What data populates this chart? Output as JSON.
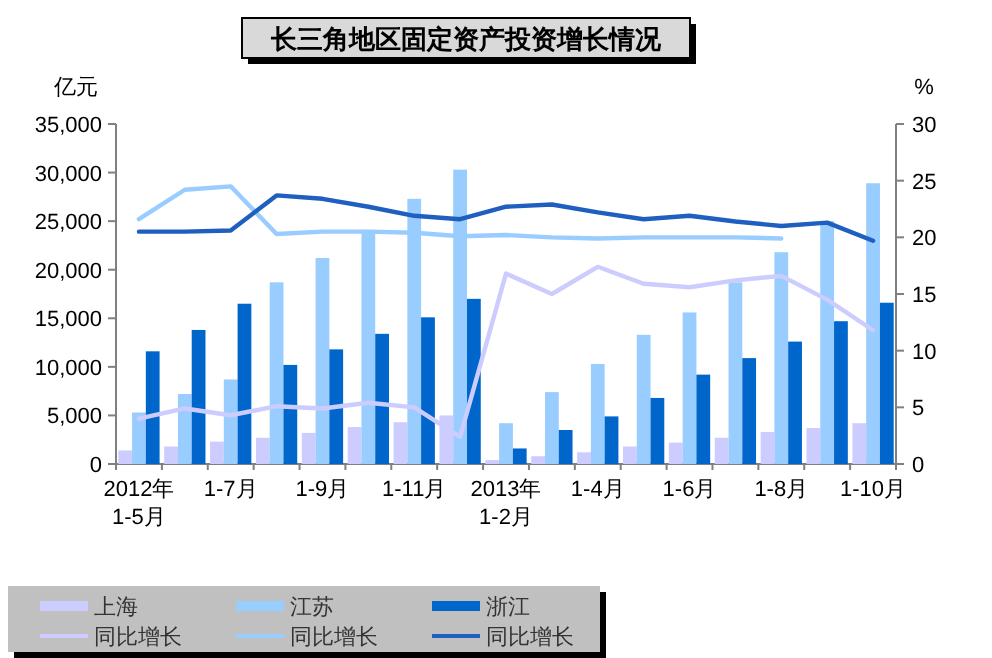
{
  "chart_data": {
    "type": "bar",
    "title": "长三角地区固定资产投资增长情况",
    "ylabel": "亿元",
    "y2label": "%",
    "categories": [
      "2012年\n1-5月",
      null,
      "1-7月",
      null,
      "1-9月",
      null,
      "1-11月",
      null,
      "2013年\n1-2月",
      null,
      "1-4月",
      null,
      "1-6月",
      null,
      "1-8月",
      null,
      "1-10月"
    ],
    "series": [
      {
        "name": "上海",
        "color": "#ccccff",
        "values": [
          1400,
          1800,
          2300,
          2700,
          3200,
          3800,
          4300,
          5000,
          400,
          800,
          1200,
          1800,
          2200,
          2700,
          3300,
          3700,
          4200
        ]
      },
      {
        "name": "江苏",
        "color": "#99ccff",
        "values": [
          5300,
          7200,
          8700,
          18700,
          21200,
          24100,
          27300,
          30300,
          4200,
          7400,
          10300,
          13300,
          15600,
          18700,
          21800,
          25000,
          28900
        ]
      },
      {
        "name": "浙江",
        "color": "#0066cc",
        "values": [
          11600,
          13800,
          16500,
          10200,
          11800,
          13400,
          15100,
          17000,
          1600,
          3500,
          4900,
          6800,
          9200,
          10900,
          12600,
          14700,
          16600
        ]
      },
      {
        "name": "同比增长",
        "type": "line",
        "axis": "y2",
        "color": "#ccccff",
        "values": [
          4.0,
          4.9,
          4.3,
          5.1,
          4.9,
          5.4,
          5.0,
          2.4,
          16.8,
          15.0,
          17.4,
          15.9,
          15.6,
          16.2,
          16.6,
          14.5,
          11.8
        ]
      },
      {
        "name": "同比增长",
        "type": "line",
        "axis": "y2",
        "color": "#99ccff",
        "values": [
          21.6,
          24.2,
          24.5,
          20.3,
          20.5,
          20.5,
          20.4,
          20.1,
          20.2,
          20.0,
          19.9,
          20.0,
          20.0,
          20.0,
          19.9,
          null,
          null
        ]
      },
      {
        "name": "同比增长",
        "type": "line",
        "axis": "y2",
        "color": "#1f5fbf",
        "values": [
          20.5,
          20.5,
          20.6,
          23.7,
          23.4,
          22.7,
          21.9,
          21.6,
          22.7,
          22.9,
          22.2,
          21.6,
          21.9,
          21.4,
          21.0,
          21.3,
          19.7
        ]
      }
    ],
    "ylim": [
      0,
      35000
    ],
    "yticks": [
      0,
      {
        "value": 5000,
        "label": "5,000"
      },
      {
        "value": 10000,
        "label": "10,000"
      },
      {
        "value": 15000,
        "label": "15,000"
      },
      {
        "value": 20000,
        "label": "20,000"
      },
      {
        "value": 25000,
        "label": "25,000"
      },
      {
        "value": 30000,
        "label": "30,000"
      },
      {
        "value": 35000,
        "label": "35,000"
      }
    ],
    "y2lim": [
      0,
      30
    ],
    "y2ticks": [
      0,
      5,
      10,
      15,
      20,
      25,
      30
    ],
    "legend": "bottom left",
    "grid": false
  }
}
